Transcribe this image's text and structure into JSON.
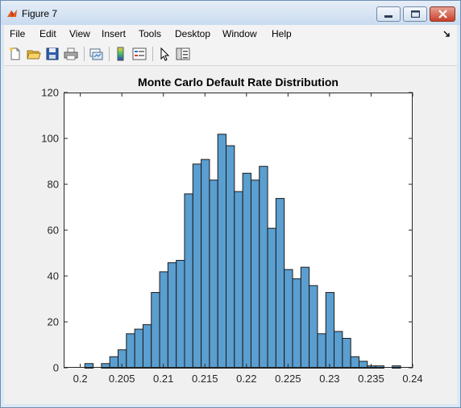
{
  "window": {
    "title": "Figure 7"
  },
  "menu": {
    "items": [
      "File",
      "Edit",
      "View",
      "Insert",
      "Tools",
      "Desktop",
      "Window",
      "Help"
    ],
    "overflow_icon": "chevron-arrow-icon"
  },
  "toolbar": {
    "icons": [
      "new-figure-icon",
      "open-file-icon",
      "save-icon",
      "print-icon",
      "link-plot-icon",
      "colorbar-icon",
      "legend-icon",
      "pointer-icon",
      "property-editor-icon"
    ]
  },
  "colors": {
    "bar_fill": "#5b9ed0",
    "bar_edge": "#1a1a1a",
    "axes_bg": "#ffffff",
    "figure_bg": "#f0f0f0"
  },
  "chart_data": {
    "type": "bar",
    "title": "Monte Carlo Default Rate Distribution",
    "xlabel": "",
    "ylabel": "",
    "xlim": [
      0.198,
      0.24
    ],
    "ylim": [
      0,
      120
    ],
    "grid": false,
    "xticks": [
      0.2,
      0.205,
      0.21,
      0.215,
      0.22,
      0.225,
      0.23,
      0.235,
      0.24
    ],
    "xtick_labels": [
      "0.2",
      "0.205",
      "0.21",
      "0.215",
      "0.22",
      "0.225",
      "0.23",
      "0.235",
      "0.24"
    ],
    "yticks": [
      0,
      20,
      40,
      60,
      80,
      100,
      120
    ],
    "ytick_labels": [
      "0",
      "20",
      "40",
      "60",
      "80",
      "100",
      "120"
    ],
    "bin_width": 0.001,
    "bin_left_edges": [
      0.2005,
      0.2015,
      0.2025,
      0.2035,
      0.2045,
      0.2055,
      0.2065,
      0.2075,
      0.2085,
      0.2095,
      0.2105,
      0.2115,
      0.2125,
      0.2135,
      0.2145,
      0.2155,
      0.2165,
      0.2175,
      0.2185,
      0.2195,
      0.2205,
      0.2215,
      0.2225,
      0.2235,
      0.2245,
      0.2255,
      0.2265,
      0.2275,
      0.2285,
      0.2295,
      0.2305,
      0.2315,
      0.2325,
      0.2335,
      0.2345,
      0.2355,
      0.2365,
      0.2375
    ],
    "values": [
      2,
      0,
      2,
      5,
      8,
      15,
      17,
      19,
      33,
      42,
      46,
      47,
      76,
      89,
      91,
      82,
      102,
      97,
      77,
      85,
      82,
      88,
      61,
      74,
      43,
      39,
      44,
      36,
      15,
      33,
      16,
      13,
      5,
      3,
      1,
      1,
      0,
      1
    ]
  }
}
